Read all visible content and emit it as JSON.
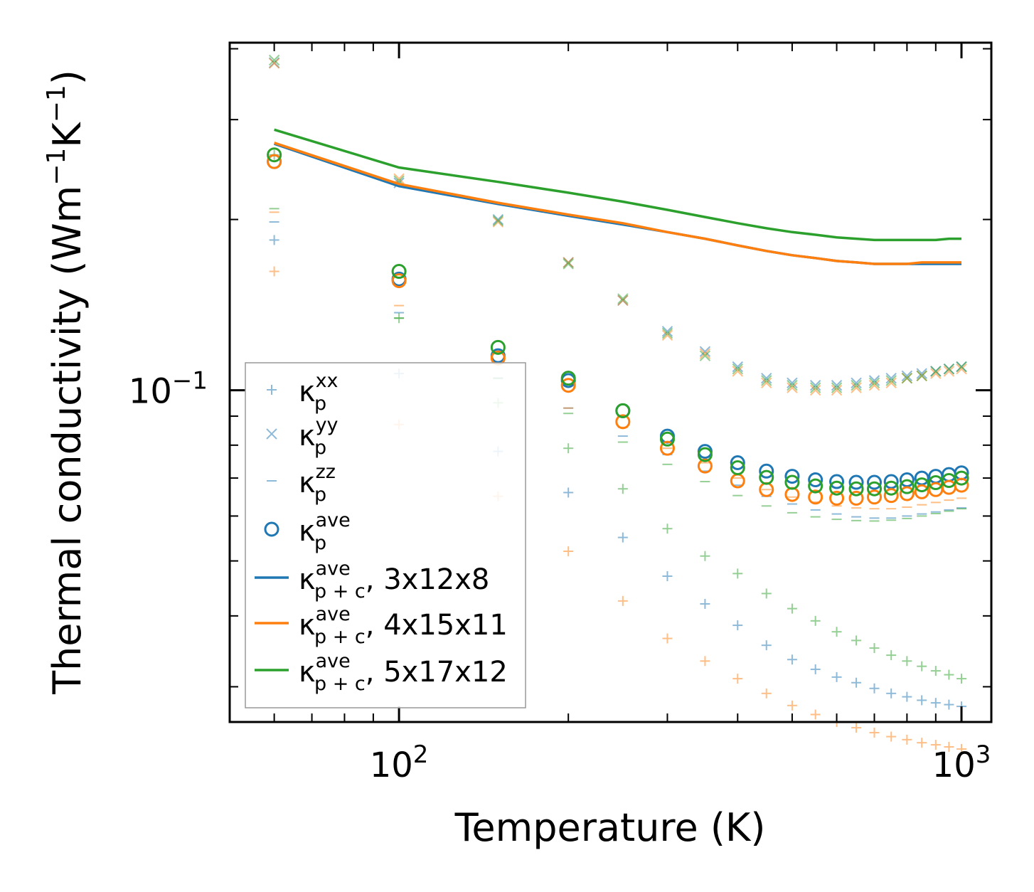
{
  "chart_data": {
    "type": "scatter",
    "xscale": "log",
    "yscale": "log",
    "xlabel": "Temperature (K)",
    "ylabel": "Thermal conductivity (Wm",
    "ylabel_sup1": "−1",
    "ylabel_mid": "K",
    "ylabel_sup2": "−1",
    "ylabel_end": ")",
    "xlim": [
      50,
      1130
    ],
    "ylim": [
      0.026,
      0.41
    ],
    "x_ticks": [
      {
        "base": "10",
        "exp": "2",
        "value": 100
      },
      {
        "base": "10",
        "exp": "3",
        "value": 1000
      }
    ],
    "y_ticks": [
      {
        "base": "10",
        "exp": "−1",
        "value": 0.1
      }
    ],
    "colors": {
      "c1": "#1f77b4",
      "c2": "#ff7f0e",
      "c3": "#2ca02c"
    },
    "x": [
      60,
      100,
      150,
      200,
      250,
      300,
      350,
      400,
      450,
      500,
      550,
      600,
      650,
      700,
      750,
      800,
      850,
      900,
      950,
      1000
    ],
    "kxx": {
      "c1": [
        0.184,
        0.107,
        0.078,
        0.066,
        0.055,
        0.047,
        0.042,
        0.0385,
        0.0355,
        0.0335,
        0.0322,
        0.0312,
        0.0305,
        0.0298,
        0.0292,
        0.0288,
        0.0284,
        0.0281,
        0.0279,
        0.0277
      ],
      "c2": [
        0.162,
        0.087,
        0.065,
        0.052,
        0.0425,
        0.0365,
        0.0333,
        0.031,
        0.0292,
        0.0278,
        0.0268,
        0.026,
        0.0254,
        0.0249,
        0.0245,
        0.0242,
        0.0239,
        0.0237,
        0.0235,
        0.0233
      ],
      "c3": [
        0.26,
        0.134,
        0.095,
        0.079,
        0.067,
        0.057,
        0.051,
        0.0475,
        0.0438,
        0.0412,
        0.0392,
        0.0375,
        0.0362,
        0.0351,
        0.0341,
        0.0333,
        0.0326,
        0.032,
        0.0315,
        0.031
      ]
    },
    "kyy": {
      "c1": [
        0.378,
        0.232,
        0.2,
        0.168,
        0.144,
        0.127,
        0.117,
        0.11,
        0.105,
        0.103,
        0.102,
        0.102,
        0.103,
        0.104,
        0.105,
        0.106,
        0.107,
        0.108,
        0.109,
        0.11
      ],
      "c2": [
        0.377,
        0.236,
        0.198,
        0.168,
        0.144,
        0.125,
        0.116,
        0.108,
        0.103,
        0.101,
        0.1,
        0.1,
        0.101,
        0.102,
        0.103,
        0.105,
        0.106,
        0.107,
        0.108,
        0.109
      ],
      "c3": [
        0.382,
        0.234,
        0.199,
        0.167,
        0.145,
        0.126,
        0.115,
        0.109,
        0.104,
        0.102,
        0.101,
        0.101,
        0.102,
        0.103,
        0.104,
        0.105,
        0.106,
        0.108,
        0.109,
        0.11
      ]
    },
    "kzz": {
      "c1": [
        0.198,
        0.137,
        0.105,
        0.093,
        0.083,
        0.077,
        0.072,
        0.068,
        0.065,
        0.063,
        0.0615,
        0.0605,
        0.0598,
        0.0595,
        0.0595,
        0.06,
        0.0605,
        0.061,
        0.0615,
        0.062
      ],
      "c2": [
        0.206,
        0.141,
        0.112,
        0.093,
        0.086,
        0.079,
        0.0745,
        0.07,
        0.0668,
        0.0648,
        0.0635,
        0.0625,
        0.062,
        0.0618,
        0.0618,
        0.0622,
        0.0628,
        0.0634,
        0.064,
        0.0645
      ],
      "c3": [
        0.209,
        0.134,
        0.105,
        0.091,
        0.081,
        0.074,
        0.069,
        0.0652,
        0.0625,
        0.0608,
        0.0598,
        0.0592,
        0.0589,
        0.0588,
        0.059,
        0.0594,
        0.06,
        0.0606,
        0.0612,
        0.0618
      ]
    },
    "kave": {
      "c1": [
        0.253,
        0.157,
        0.115,
        0.104,
        0.092,
        0.083,
        0.078,
        0.0745,
        0.072,
        0.0705,
        0.0695,
        0.069,
        0.0688,
        0.0688,
        0.069,
        0.0695,
        0.07,
        0.0705,
        0.071,
        0.0715
      ],
      "c2": [
        0.253,
        0.156,
        0.114,
        0.102,
        0.088,
        0.079,
        0.0735,
        0.0692,
        0.0668,
        0.0655,
        0.0648,
        0.0645,
        0.0645,
        0.0648,
        0.0652,
        0.0657,
        0.0662,
        0.0668,
        0.0674,
        0.068
      ],
      "c3": [
        0.26,
        0.162,
        0.119,
        0.105,
        0.092,
        0.082,
        0.077,
        0.073,
        0.0702,
        0.0688,
        0.0678,
        0.0672,
        0.067,
        0.067,
        0.0672,
        0.0676,
        0.0681,
        0.0687,
        0.0693,
        0.07
      ]
    },
    "lines": {
      "x": [
        60,
        100,
        150,
        200,
        250,
        300,
        350,
        400,
        450,
        500,
        550,
        600,
        650,
        700,
        750,
        800,
        850,
        900,
        950,
        1000
      ],
      "c1": [
        0.272,
        0.229,
        0.213,
        0.203,
        0.196,
        0.19,
        0.185,
        0.18,
        0.176,
        0.173,
        0.171,
        0.169,
        0.168,
        0.167,
        0.167,
        0.167,
        0.167,
        0.167,
        0.167,
        0.167
      ],
      "c2": [
        0.273,
        0.231,
        0.214,
        0.204,
        0.197,
        0.19,
        0.185,
        0.18,
        0.176,
        0.173,
        0.171,
        0.169,
        0.168,
        0.167,
        0.167,
        0.167,
        0.168,
        0.168,
        0.168,
        0.168
      ],
      "c3": [
        0.288,
        0.247,
        0.233,
        0.223,
        0.215,
        0.208,
        0.202,
        0.197,
        0.193,
        0.19,
        0.188,
        0.186,
        0.185,
        0.184,
        0.184,
        0.184,
        0.184,
        0.184,
        0.185,
        0.185
      ]
    },
    "legend": {
      "position": "lower-left",
      "entries": [
        {
          "kappa": "κ",
          "sub": "p",
          "sup": "xx",
          "suffix": ""
        },
        {
          "kappa": "κ",
          "sub": "p",
          "sup": "yy",
          "suffix": ""
        },
        {
          "kappa": "κ",
          "sub": "p",
          "sup": "zz",
          "suffix": ""
        },
        {
          "kappa": "κ",
          "sub": "p",
          "sup": "ave",
          "suffix": ""
        },
        {
          "kappa": "κ",
          "sub": "p + c",
          "sup": "ave",
          "suffix": ", 3x12x8"
        },
        {
          "kappa": "κ",
          "sub": "p + c",
          "sup": "ave",
          "suffix": ", 4x15x11"
        },
        {
          "kappa": "κ",
          "sub": "p + c",
          "sup": "ave",
          "suffix": ", 5x17x12"
        }
      ]
    }
  }
}
